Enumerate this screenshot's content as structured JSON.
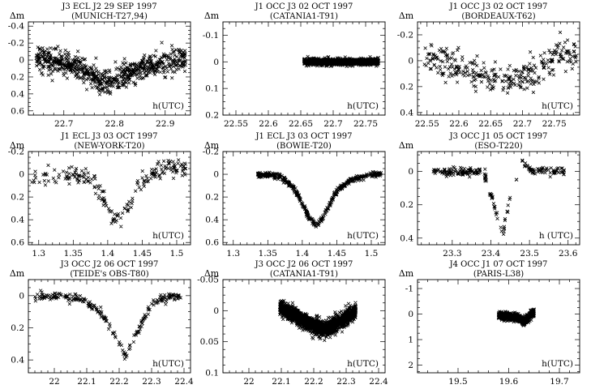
{
  "chart_data": [
    {
      "type": "scatter",
      "title": "J3 ECL J2 29 SEP 1997",
      "subtitle": "(MUNICH-T27,94)",
      "ylabel": "Δm",
      "xlabel": "h(UTC)",
      "xlim": [
        22.63,
        22.95
      ],
      "ylim": [
        -0.45,
        0.65
      ],
      "y_inverted": true,
      "xticks": [
        22.7,
        22.8,
        22.9
      ],
      "yticks": [
        -0.4,
        -0.2,
        0,
        0.2,
        0.4,
        0.6
      ],
      "xtick_labels": [
        "22.7",
        "22.8",
        "22.9"
      ],
      "ytick_labels": [
        "-0.4",
        "-0.2",
        "0",
        "0.2",
        "0.4",
        "0.6"
      ],
      "marker": "x",
      "density": 700,
      "noise": 0.07,
      "x_span": [
        22.645,
        22.94
      ],
      "curve": [
        [
          22.64,
          0.0
        ],
        [
          22.7,
          0.02
        ],
        [
          22.74,
          0.12
        ],
        [
          22.78,
          0.28
        ],
        [
          22.82,
          0.18
        ],
        [
          22.87,
          0.06
        ],
        [
          22.94,
          0.0
        ]
      ]
    },
    {
      "type": "scatter",
      "title": "J1 OCC J3 02 OCT 1997",
      "subtitle": "(CATANIA1-T91)",
      "ylabel": "Δm",
      "xlabel": "h(UTC)",
      "xlim": [
        22.53,
        22.78
      ],
      "ylim": [
        -0.15,
        0.2
      ],
      "y_inverted": true,
      "xticks": [
        22.55,
        22.6,
        22.65,
        22.7,
        22.75
      ],
      "yticks": [
        -0.1,
        0,
        0.1,
        0.2
      ],
      "xtick_labels": [
        "22.55",
        "22.6",
        "22.65",
        "22.7",
        "22.75"
      ],
      "ytick_labels": [
        "-0.1",
        "0",
        "0.1",
        "0.2"
      ],
      "marker": "x",
      "density": 1300,
      "noise": 0.006,
      "x_span": [
        22.655,
        22.77
      ],
      "curve": [
        [
          22.655,
          0.0
        ],
        [
          22.77,
          0.0
        ]
      ]
    },
    {
      "type": "scatter",
      "title": "J1 OCC J3 02 OCT 1997",
      "subtitle": "(BORDEAUX-T62)",
      "ylabel": "Δm",
      "xlabel": "h(UTC)",
      "xlim": [
        22.535,
        22.79
      ],
      "ylim": [
        -0.3,
        0.42
      ],
      "y_inverted": true,
      "xticks": [
        22.55,
        22.6,
        22.65,
        22.7,
        22.75
      ],
      "yticks": [
        -0.2,
        0,
        0.2,
        0.4
      ],
      "xtick_labels": [
        "22.55",
        "22.6",
        "22.65",
        "22.7",
        "22.75"
      ],
      "ytick_labels": [
        "-0.2",
        "0",
        "0.2",
        "0.4"
      ],
      "marker": "x",
      "density": 320,
      "noise": 0.06,
      "x_span": [
        22.545,
        22.785
      ],
      "curve": [
        [
          22.545,
          -0.02
        ],
        [
          22.6,
          0.05
        ],
        [
          22.64,
          0.12
        ],
        [
          22.68,
          0.17
        ],
        [
          22.72,
          0.08
        ],
        [
          22.76,
          -0.05
        ],
        [
          22.785,
          -0.05
        ]
      ]
    },
    {
      "type": "scatter",
      "title": "J1 ECL J3 03 OCT 1997",
      "subtitle": "(NEW-YORK-T20)",
      "ylabel": "Δm",
      "xlabel": "h(UTC)",
      "xlim": [
        1.285,
        1.52
      ],
      "ylim": [
        -0.2,
        0.62
      ],
      "y_inverted": true,
      "xticks": [
        1.3,
        1.35,
        1.4,
        1.45,
        1.5
      ],
      "yticks": [
        -0.2,
        0,
        0.2,
        0.4,
        0.6
      ],
      "xtick_labels": [
        "1.3",
        "1.35",
        "1.4",
        "1.45",
        "1.5"
      ],
      "ytick_labels": [
        "-0.2",
        "0",
        "0.2",
        "0.4",
        "0.6"
      ],
      "marker": "x",
      "density": 200,
      "noise": 0.04,
      "x_span": [
        1.29,
        1.515
      ],
      "curve": [
        [
          1.29,
          0.0
        ],
        [
          1.37,
          0.02
        ],
        [
          1.39,
          0.15
        ],
        [
          1.405,
          0.38
        ],
        [
          1.42,
          0.38
        ],
        [
          1.435,
          0.2
        ],
        [
          1.45,
          0.05
        ],
        [
          1.48,
          -0.05
        ],
        [
          1.515,
          -0.07
        ]
      ]
    },
    {
      "type": "scatter",
      "title": "J1 ECL J3 03 OCT 1997",
      "subtitle": "(BOWIE-T20)",
      "ylabel": "Δm",
      "xlabel": "h(UTC)",
      "xlim": [
        1.285,
        1.52
      ],
      "ylim": [
        -0.2,
        0.62
      ],
      "y_inverted": true,
      "xticks": [
        1.3,
        1.35,
        1.4,
        1.45,
        1.5
      ],
      "yticks": [
        -0.2,
        0,
        0.2,
        0.4,
        0.6
      ],
      "xtick_labels": [
        "1.3",
        "1.35",
        "1.4",
        "1.45",
        "1.5"
      ],
      "ytick_labels": [
        "-0.2",
        "0",
        "0.2",
        "0.4",
        "0.6"
      ],
      "marker": "x",
      "density": 420,
      "noise": 0.012,
      "x_span": [
        1.335,
        1.515
      ],
      "curve": [
        [
          1.335,
          0.0
        ],
        [
          1.37,
          0.02
        ],
        [
          1.39,
          0.14
        ],
        [
          1.41,
          0.38
        ],
        [
          1.42,
          0.45
        ],
        [
          1.43,
          0.38
        ],
        [
          1.45,
          0.15
        ],
        [
          1.47,
          0.05
        ],
        [
          1.5,
          0.0
        ],
        [
          1.515,
          0.0
        ]
      ]
    },
    {
      "type": "scatter",
      "title": "J3 OCC J1 05 OCT 1997",
      "subtitle": "(ESO-T220)",
      "ylabel": "Δm",
      "xlabel": "h (UTC)",
      "xlim": [
        23.21,
        23.63
      ],
      "ylim": [
        -0.12,
        0.44
      ],
      "y_inverted": true,
      "xticks": [
        23.3,
        23.4,
        23.5,
        23.6
      ],
      "yticks": [
        0,
        0.2,
        0.4
      ],
      "xtick_labels": [
        "23.3",
        "23.4",
        "23.5",
        "23.6"
      ],
      "ytick_labels": [
        "0",
        "0.2",
        "0.4"
      ],
      "marker": "x",
      "density": 230,
      "noise": 0.012,
      "x_span": [
        23.25,
        23.59
      ],
      "gap": [
        23.45,
        23.48
      ],
      "curve": [
        [
          23.25,
          0.0
        ],
        [
          23.38,
          0.0
        ],
        [
          23.39,
          0.06
        ],
        [
          23.41,
          0.22
        ],
        [
          23.43,
          0.38
        ],
        [
          23.445,
          0.22
        ],
        [
          23.45,
          0.17
        ],
        [
          23.48,
          -0.06
        ],
        [
          23.5,
          -0.01
        ],
        [
          23.59,
          0.0
        ]
      ]
    },
    {
      "type": "scatter",
      "title": "J3 OCC J2 06 OCT 1997",
      "subtitle": "(TEIDE's OBS-T80)",
      "ylabel": "Δm",
      "xlabel": "h(UTC)",
      "xlim": [
        21.92,
        22.42
      ],
      "ylim": [
        -0.1,
        0.48
      ],
      "y_inverted": true,
      "xticks": [
        22,
        22.1,
        22.2,
        22.3,
        22.4
      ],
      "yticks": [
        0,
        0.2,
        0.4
      ],
      "xtick_labels": [
        "22",
        "22.1",
        "22.2",
        "22.3",
        "22.4"
      ],
      "ytick_labels": [
        "0",
        "0.2",
        "0.4"
      ],
      "marker": "x",
      "density": 230,
      "noise": 0.012,
      "x_span": [
        21.94,
        22.39
      ],
      "curve": [
        [
          21.94,
          0.0
        ],
        [
          22.08,
          0.01
        ],
        [
          22.15,
          0.12
        ],
        [
          22.2,
          0.3
        ],
        [
          22.22,
          0.38
        ],
        [
          22.25,
          0.25
        ],
        [
          22.3,
          0.05
        ],
        [
          22.35,
          0.0
        ],
        [
          22.39,
          0.01
        ]
      ]
    },
    {
      "type": "scatter",
      "title": "J3 OCC J2 06 OCT 1997",
      "subtitle": "(CATANIA1-T91)",
      "ylabel": "Δm",
      "xlabel": "h(UTC)",
      "xlim": [
        21.92,
        22.42
      ],
      "ylim": [
        -0.05,
        0.1
      ],
      "y_inverted": true,
      "xticks": [
        22,
        22.1,
        22.2,
        22.3,
        22.4
      ],
      "yticks": [
        -0.05,
        0,
        0.05,
        0.1
      ],
      "xtick_labels": [
        "22",
        "22.1",
        "22.2",
        "22.3",
        "22.4"
      ],
      "ytick_labels": [
        "-0.05",
        "0",
        "0.05",
        "0.1"
      ],
      "marker": "x",
      "density": 1700,
      "noise": 0.006,
      "x_span": [
        22.095,
        22.33
      ],
      "curve": [
        [
          22.095,
          -0.005
        ],
        [
          22.15,
          0.01
        ],
        [
          22.2,
          0.025
        ],
        [
          22.24,
          0.03
        ],
        [
          22.28,
          0.018
        ],
        [
          22.33,
          0.0
        ]
      ]
    },
    {
      "type": "scatter",
      "title": "J4 OCC J1 07 OCT 1997",
      "subtitle": "(PARIS-L38)",
      "ylabel": "Δm",
      "xlabel": "h(UTC)",
      "xlim": [
        19.42,
        19.74
      ],
      "ylim": [
        -1.35,
        2.3
      ],
      "y_inverted": true,
      "xticks": [
        19.5,
        19.6,
        19.7
      ],
      "yticks": [
        -1,
        0,
        1,
        2
      ],
      "xtick_labels": [
        "19.5",
        "19.6",
        "19.7"
      ],
      "ytick_labels": [
        "-1",
        "0",
        "1",
        "2"
      ],
      "marker": "x",
      "density": 900,
      "noise": 0.07,
      "x_span": [
        19.58,
        19.65
      ],
      "curve": [
        [
          19.58,
          0.05
        ],
        [
          19.62,
          0.15
        ],
        [
          19.63,
          0.3
        ],
        [
          19.64,
          0.1
        ],
        [
          19.65,
          -0.05
        ]
      ]
    }
  ]
}
